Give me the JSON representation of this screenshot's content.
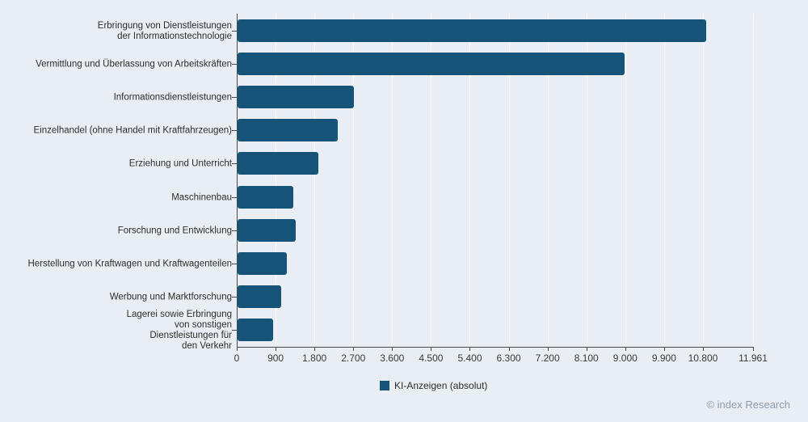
{
  "chart_data": {
    "type": "bar",
    "orientation": "horizontal",
    "legend": {
      "label": "KI-Anzeigen (absolut)",
      "position": "bottom-center"
    },
    "bar_color": "#165378",
    "background_color": "#e8eef3",
    "xlim": [
      0,
      11961
    ],
    "grid": "vertical-faint",
    "categories": [
      "Erbringung von Dienstleistungen der Informationstechnologie",
      "Vermittlung und Überlassung von Arbeitskräften",
      "Informationsdienstleistungen",
      "Einzelhandel (ohne Handel mit Kraftfahrzeugen)",
      "Erziehung und Unterricht",
      "Maschinenbau",
      "Forschung und Entwicklung",
      "Herstellung von Kraftwagen und Kraftwagenteilen",
      "Werbung und Marktforschung",
      "Lagerei sowie Erbringung von sonstigen Dienstleistungen für den Verkehr"
    ],
    "category_lines": [
      [
        "Erbringung von Dienstleistungen",
        "der Informationstechnologie"
      ],
      [
        "Vermittlung und Überlassung von Arbeitskräften"
      ],
      [
        "Informationsdienstleistungen"
      ],
      [
        "Einzelhandel (ohne Handel mit Kraftfahrzeugen)"
      ],
      [
        "Erziehung und Unterricht"
      ],
      [
        "Maschinenbau"
      ],
      [
        "Forschung und Entwicklung"
      ],
      [
        "Herstellung von Kraftwagen und Kraftwagenteilen"
      ],
      [
        "Werbung und Marktforschung"
      ],
      [
        "Lagerei sowie Erbringung",
        "von sonstigen",
        "Dienstleistungen für",
        "den Verkehr"
      ]
    ],
    "series": [
      {
        "name": "KI-Anzeigen (absolut)",
        "values": [
          10860,
          8960,
          2700,
          2330,
          1870,
          1300,
          1350,
          1140,
          1010,
          820
        ]
      }
    ],
    "values": [
      10860,
      8960,
      2700,
      2330,
      1870,
      1300,
      1350,
      1140,
      1010,
      820
    ],
    "x_ticks": [
      {
        "label": "0",
        "value": 0
      },
      {
        "label": "900",
        "value": 900
      },
      {
        "label": "1.800",
        "value": 1800
      },
      {
        "label": "2.700",
        "value": 2700
      },
      {
        "label": "3.600",
        "value": 3600
      },
      {
        "label": "4.500",
        "value": 4500
      },
      {
        "label": "5.400",
        "value": 5400
      },
      {
        "label": "6.300",
        "value": 6300
      },
      {
        "label": "7.200",
        "value": 7200
      },
      {
        "label": "8.100",
        "value": 8100
      },
      {
        "label": "9.000",
        "value": 9000
      },
      {
        "label": "9.900",
        "value": 9900
      },
      {
        "label": "10.800",
        "value": 10800
      },
      {
        "label": "11.961",
        "value": 11961
      }
    ]
  },
  "footer": {
    "copyright": "© index Research"
  }
}
